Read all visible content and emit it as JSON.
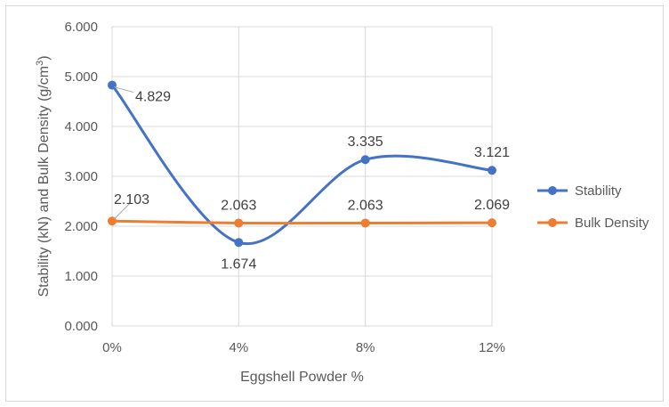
{
  "chart_data": {
    "type": "line",
    "title": "",
    "xlabel": "Eggshell Powder %",
    "ylabel": "Stability (kN) and Bulk Density (g/cm",
    "ylabel_superscript": "3",
    "ylabel_close": ")",
    "categories": [
      "0%",
      "4%",
      "8%",
      "12%"
    ],
    "ylim": [
      0,
      6
    ],
    "yticks": [
      "0.000",
      "1.000",
      "2.000",
      "3.000",
      "4.000",
      "5.000",
      "6.000"
    ],
    "grid": true,
    "smooth": true,
    "legend_position": "right",
    "series": [
      {
        "name": "Stability",
        "color": "#4472c4",
        "values": [
          4.829,
          1.674,
          3.335,
          3.121
        ],
        "labels": [
          "4.829",
          "1.674",
          "3.335",
          "3.121"
        ]
      },
      {
        "name": "Bulk Density",
        "color": "#ed7d31",
        "values": [
          2.103,
          2.063,
          2.063,
          2.069
        ],
        "labels": [
          "2.103",
          "2.063",
          "2.063",
          "2.069"
        ]
      }
    ]
  }
}
